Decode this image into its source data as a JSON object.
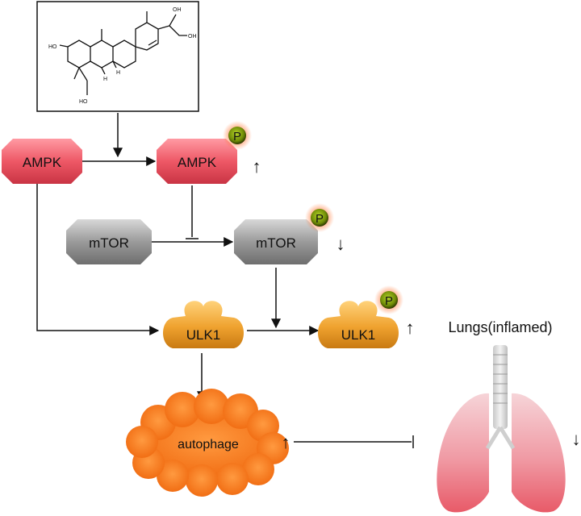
{
  "nodes": {
    "ampk": "AMPK",
    "ampk_p": "AMPK",
    "mtor": "mTOR",
    "mtor_p": "mTOR",
    "ulk1": "ULK1",
    "ulk1_p": "ULK1",
    "autophage": "autophage",
    "lungs_title": "Lungs(inflamed)"
  },
  "phospho_label": "P",
  "molecule": {
    "hydroxyl_label": "HO",
    "hydroxyl_label_right": "OH",
    "h_label": "H"
  },
  "indicators": {
    "ampk_p": "↑",
    "mtor_p": "↓",
    "ulk1_p": "↑",
    "autophage": "↑",
    "lungs": "↓"
  },
  "colors": {
    "ampk": "#ee5866",
    "mtor": "#9a9a9a",
    "ulk1": "#efa22f",
    "autophage": "#f47a22",
    "phospho": "#7a9a0a",
    "lung": "#ea6a76"
  }
}
